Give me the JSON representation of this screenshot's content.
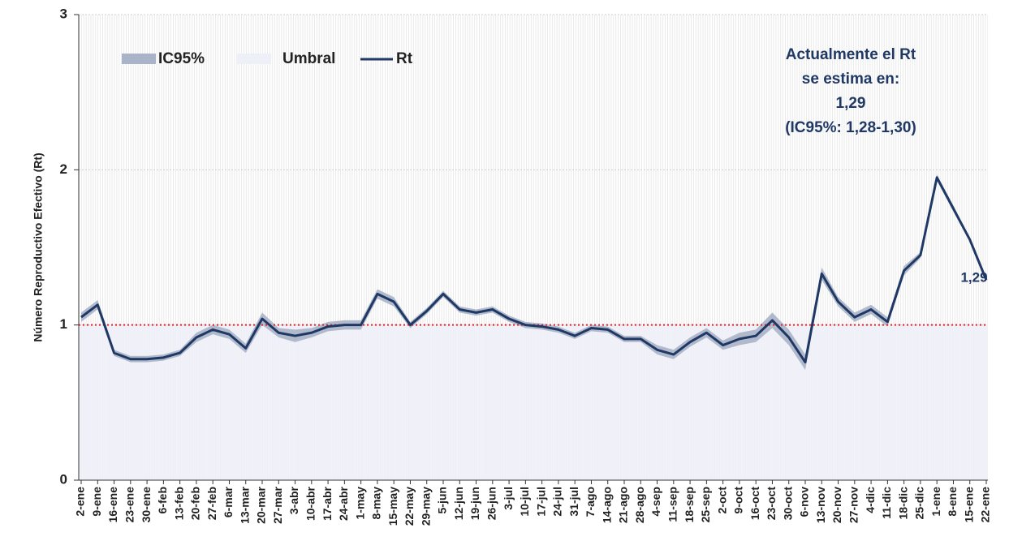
{
  "chart_data": {
    "type": "line",
    "ylabel": "Número Reproductivo Efectivo (Rt)",
    "categories": [
      "2-ene",
      "9-ene",
      "16-ene",
      "23-ene",
      "30-ene",
      "6-feb",
      "13-feb",
      "20-feb",
      "27-feb",
      "6-mar",
      "13-mar",
      "20-mar",
      "27-mar",
      "3-abr",
      "10-abr",
      "17-abr",
      "24-abr",
      "1-may",
      "8-may",
      "15-may",
      "22-may",
      "29-may",
      "5-jun",
      "12-jun",
      "19-jun",
      "26-jun",
      "3-jul",
      "10-jul",
      "17-jul",
      "24-jul",
      "31-jul",
      "7-ago",
      "14-ago",
      "21-ago",
      "28-ago",
      "4-sep",
      "11-sep",
      "18-sep",
      "25-sep",
      "2-oct",
      "9-oct",
      "16-oct",
      "23-oct",
      "30-oct",
      "6-nov",
      "13-nov",
      "20-nov",
      "27-nov",
      "4-dic",
      "11-dic",
      "18-dic",
      "25-dic",
      "1-ene",
      "8-ene",
      "15-ene",
      "22-ene"
    ],
    "ylim": [
      0,
      3
    ],
    "yticks": [
      0,
      1,
      2,
      3
    ],
    "series": [
      {
        "name": "Rt",
        "color": "#1f3864",
        "values": [
          1.05,
          1.13,
          0.82,
          0.78,
          0.78,
          0.79,
          0.82,
          0.92,
          0.97,
          0.94,
          0.85,
          1.04,
          0.95,
          0.93,
          0.95,
          0.99,
          1.0,
          1.0,
          1.2,
          1.15,
          1.0,
          1.09,
          1.2,
          1.1,
          1.08,
          1.1,
          1.04,
          1.0,
          0.99,
          0.97,
          0.93,
          0.98,
          0.97,
          0.91,
          0.91,
          0.84,
          0.81,
          0.89,
          0.95,
          0.87,
          0.91,
          0.93,
          1.03,
          0.92,
          0.76,
          1.33,
          1.15,
          1.05,
          1.1,
          1.02,
          1.35,
          1.45,
          1.95,
          1.75,
          1.55,
          1.29
        ]
      }
    ],
    "band": {
      "name": "IC95%",
      "color": "#aab4c8",
      "lower": [
        1.02,
        1.1,
        0.8,
        0.76,
        0.76,
        0.77,
        0.8,
        0.89,
        0.94,
        0.91,
        0.82,
        1.0,
        0.92,
        0.89,
        0.92,
        0.96,
        0.97,
        0.97,
        1.17,
        1.12,
        0.98,
        1.07,
        1.18,
        1.08,
        1.06,
        1.08,
        1.02,
        0.98,
        0.97,
        0.95,
        0.91,
        0.96,
        0.95,
        0.89,
        0.89,
        0.81,
        0.78,
        0.86,
        0.92,
        0.84,
        0.87,
        0.89,
        0.98,
        0.87,
        0.71,
        1.29,
        1.12,
        1.02,
        1.07,
        0.99,
        1.32,
        1.43,
        1.93,
        1.73,
        1.54,
        1.28
      ],
      "upper": [
        1.08,
        1.16,
        0.84,
        0.8,
        0.8,
        0.81,
        0.84,
        0.95,
        1.0,
        0.97,
        0.88,
        1.08,
        0.98,
        0.97,
        0.98,
        1.02,
        1.03,
        1.03,
        1.23,
        1.18,
        1.02,
        1.11,
        1.22,
        1.12,
        1.1,
        1.12,
        1.06,
        1.02,
        1.01,
        0.99,
        0.95,
        1.0,
        0.99,
        0.93,
        0.93,
        0.87,
        0.84,
        0.92,
        0.98,
        0.9,
        0.95,
        0.97,
        1.08,
        0.97,
        0.81,
        1.37,
        1.18,
        1.08,
        1.13,
        1.05,
        1.38,
        1.47,
        1.97,
        1.77,
        1.56,
        1.3
      ]
    },
    "threshold": {
      "name": "Umbral",
      "value": 1,
      "line_color": "#e0202a",
      "fill": "#eef0f8"
    },
    "annotation": [
      "Actualmente el Rt",
      "se estima en:",
      "1,29",
      "(IC95%: 1,28-1,30)"
    ],
    "end_label": "1,29"
  }
}
